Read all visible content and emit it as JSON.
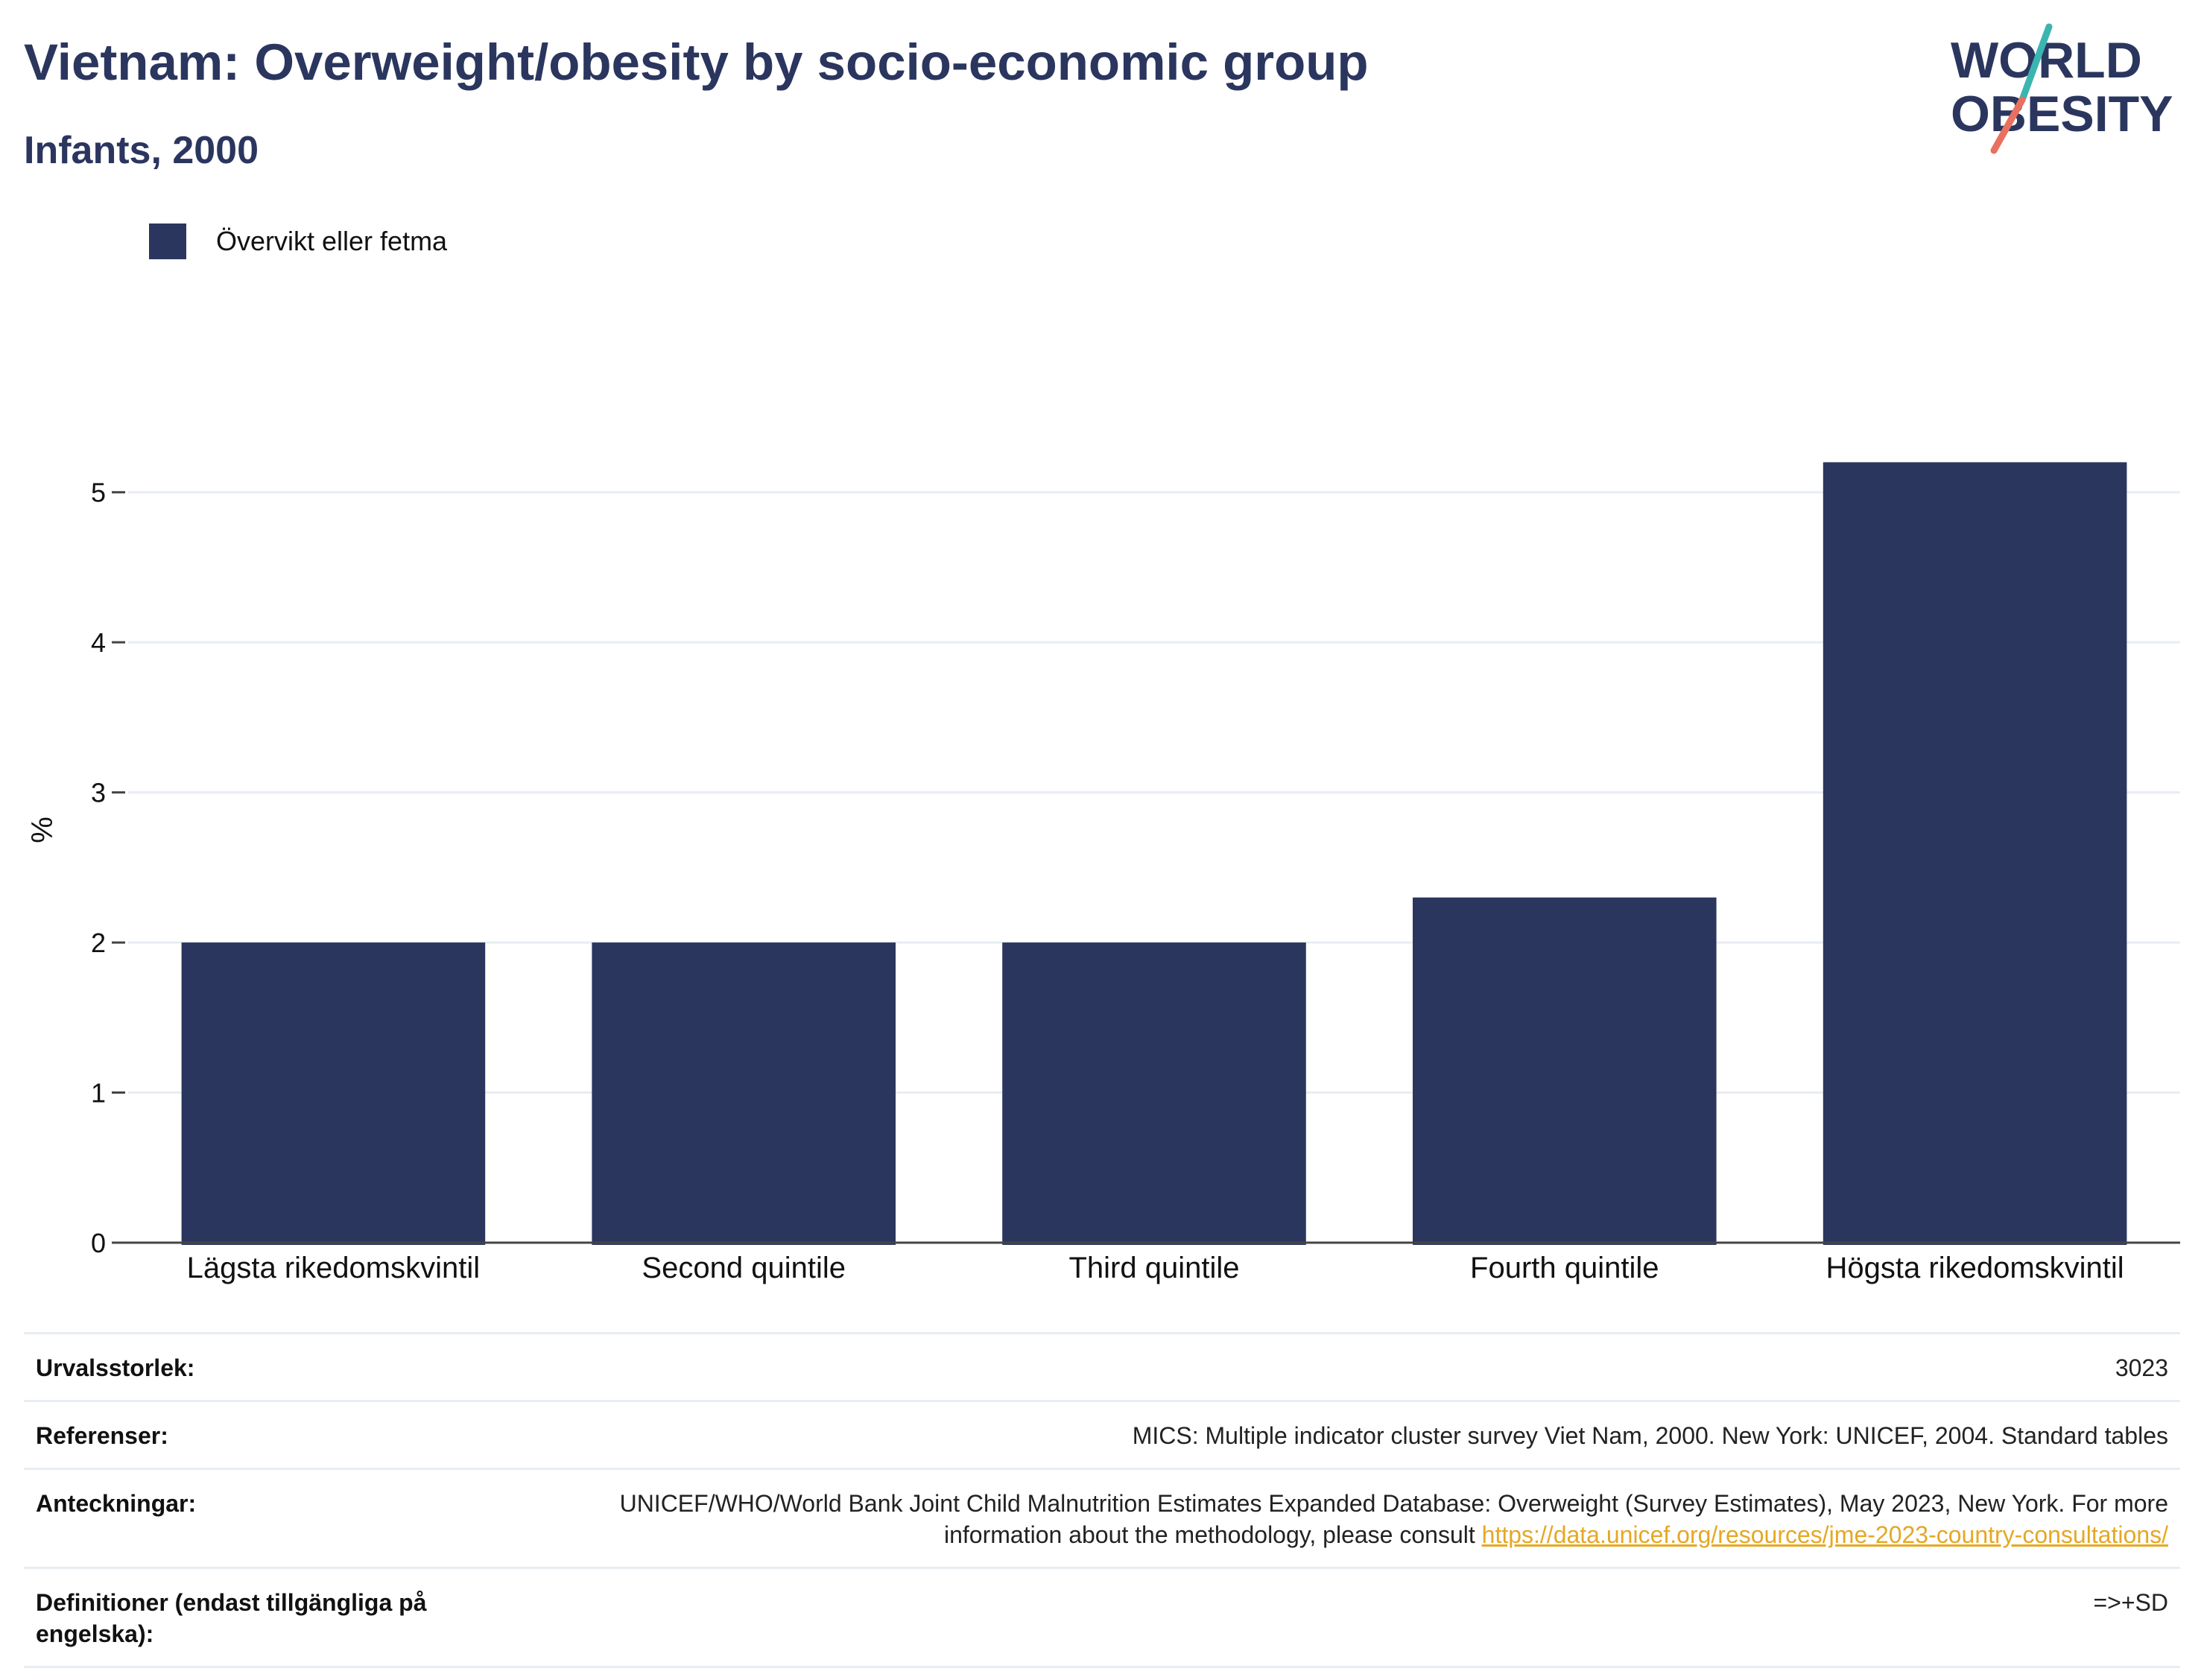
{
  "header": {
    "title": "Vietnam: Overweight/obesity by socio-economic group",
    "subtitle": "Infants, 2000"
  },
  "logo": {
    "line1": "WORLD",
    "line2": "OBESITY",
    "colors": {
      "text": "#2b365f",
      "slash_top": "#3bb5b0",
      "slash_bottom": "#e9705f"
    }
  },
  "legend": {
    "label": "Övervikt eller fetma",
    "color": "#2b365f"
  },
  "chart_data": {
    "type": "bar",
    "categories": [
      "Lägsta rikedomskvintil",
      "Second quintile",
      "Third quintile",
      "Fourth quintile",
      "Högsta rikedomskvintil"
    ],
    "series": [
      {
        "name": "Övervikt eller fetma",
        "values": [
          2.0,
          2.0,
          2.0,
          2.3,
          5.2
        ],
        "color": "#2b365f"
      }
    ],
    "ylabel": "%",
    "xlabel": "",
    "ylim": [
      0,
      5.5
    ],
    "yticks": [
      0,
      1,
      2,
      3,
      4,
      5
    ],
    "grid": true,
    "legend_position": "top-left"
  },
  "info": {
    "rows": [
      {
        "key": "Urvalsstorlek:",
        "value": "3023"
      },
      {
        "key": "Referenser:",
        "value": "MICS: Multiple indicator cluster survey Viet Nam, 2000. New York: UNICEF, 2004. Standard tables"
      },
      {
        "key": "Anteckningar:",
        "value": "UNICEF/WHO/World Bank Joint Child Malnutrition Estimates Expanded Database: Overweight (Survey Estimates), May 2023, New York. For more information about the methodology, please consult ",
        "link": "https://data.unicef.org/resources/jme-2023-country-consultations/"
      },
      {
        "key": "Definitioner (endast tillgängliga på engelska):",
        "value": "=>+SD"
      }
    ]
  }
}
